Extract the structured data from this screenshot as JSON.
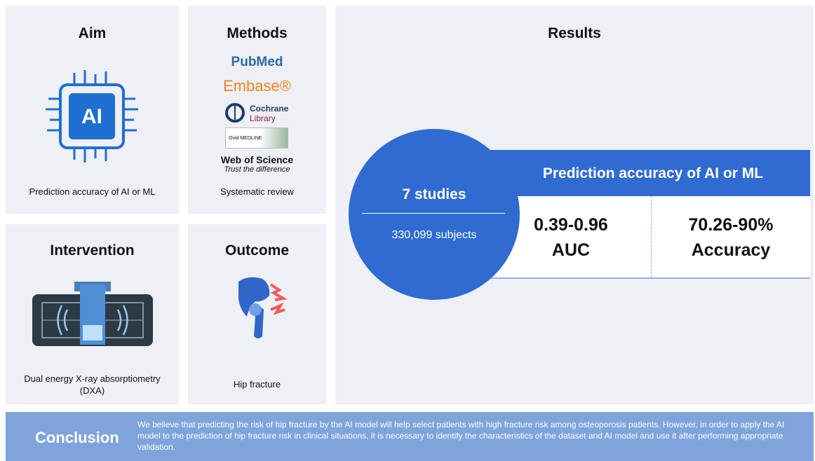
{
  "panels": {
    "aim": {
      "title": "Aim",
      "icon_label": "AI",
      "caption": "Prediction accuracy of AI or ML"
    },
    "methods": {
      "title": "Methods",
      "databases": [
        "PubMed",
        "Embase®",
        "Cochrane",
        "Library",
        "Ovid MEDLINE",
        "Web of Science",
        "Trust the difference"
      ],
      "caption": "Systematic review"
    },
    "intervention": {
      "title": "Intervention",
      "caption": "Dual energy X-ray absorptiometry (DXA)"
    },
    "outcome": {
      "title": "Outcome",
      "caption": "Hip fracture"
    },
    "results": {
      "title": "Results",
      "studies": "7 studies",
      "subjects": "330,099 subjects",
      "banner": "Prediction accuracy of AI or ML",
      "metrics": [
        {
          "value": "0.39-0.96",
          "label": "AUC"
        },
        {
          "value": "70.26-90%",
          "label": "Accuracy"
        }
      ]
    }
  },
  "conclusion": {
    "title": "Conclusion",
    "text": "We believe that predicting the risk of hip fracture by the AI model will help select patients with high fracture risk among osteoporosis patients. However, in order to apply the AI model to the prediction of hip fracture risk in clinical situations, it is necessary to identify the characteristics of the dataset and AI model and use it after performing appropriate validation."
  }
}
